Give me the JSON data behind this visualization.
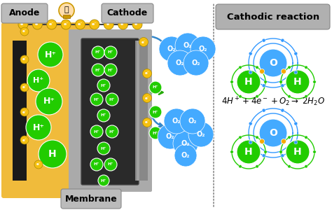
{
  "title": "Cathodic reaction",
  "anode_label": "Anode",
  "cathode_label": "Cathode",
  "membrane_label": "Membrane",
  "bg_color": "#ffffff",
  "anode_bg": "#f0b830",
  "cathode_bg": "#999999",
  "electrode_dark": "#1a1a1a",
  "cathode_dark": "#555555",
  "green_atom": "#22cc00",
  "blue_atom": "#44aaff",
  "yellow_atom": "#f5c010",
  "dashed_line_color": "#555555",
  "arrow_blue": "#3388cc",
  "arrow_green": "#22aa00",
  "orbit_blue": "#3399ff",
  "orbit_green": "#22cc00",
  "bond_color": "#f5aa00",
  "label_box_fc": "#bbbbbb",
  "label_box_ec": "#888888",
  "wire_color": "#444444",
  "membrane_color": "#aaaaaa"
}
